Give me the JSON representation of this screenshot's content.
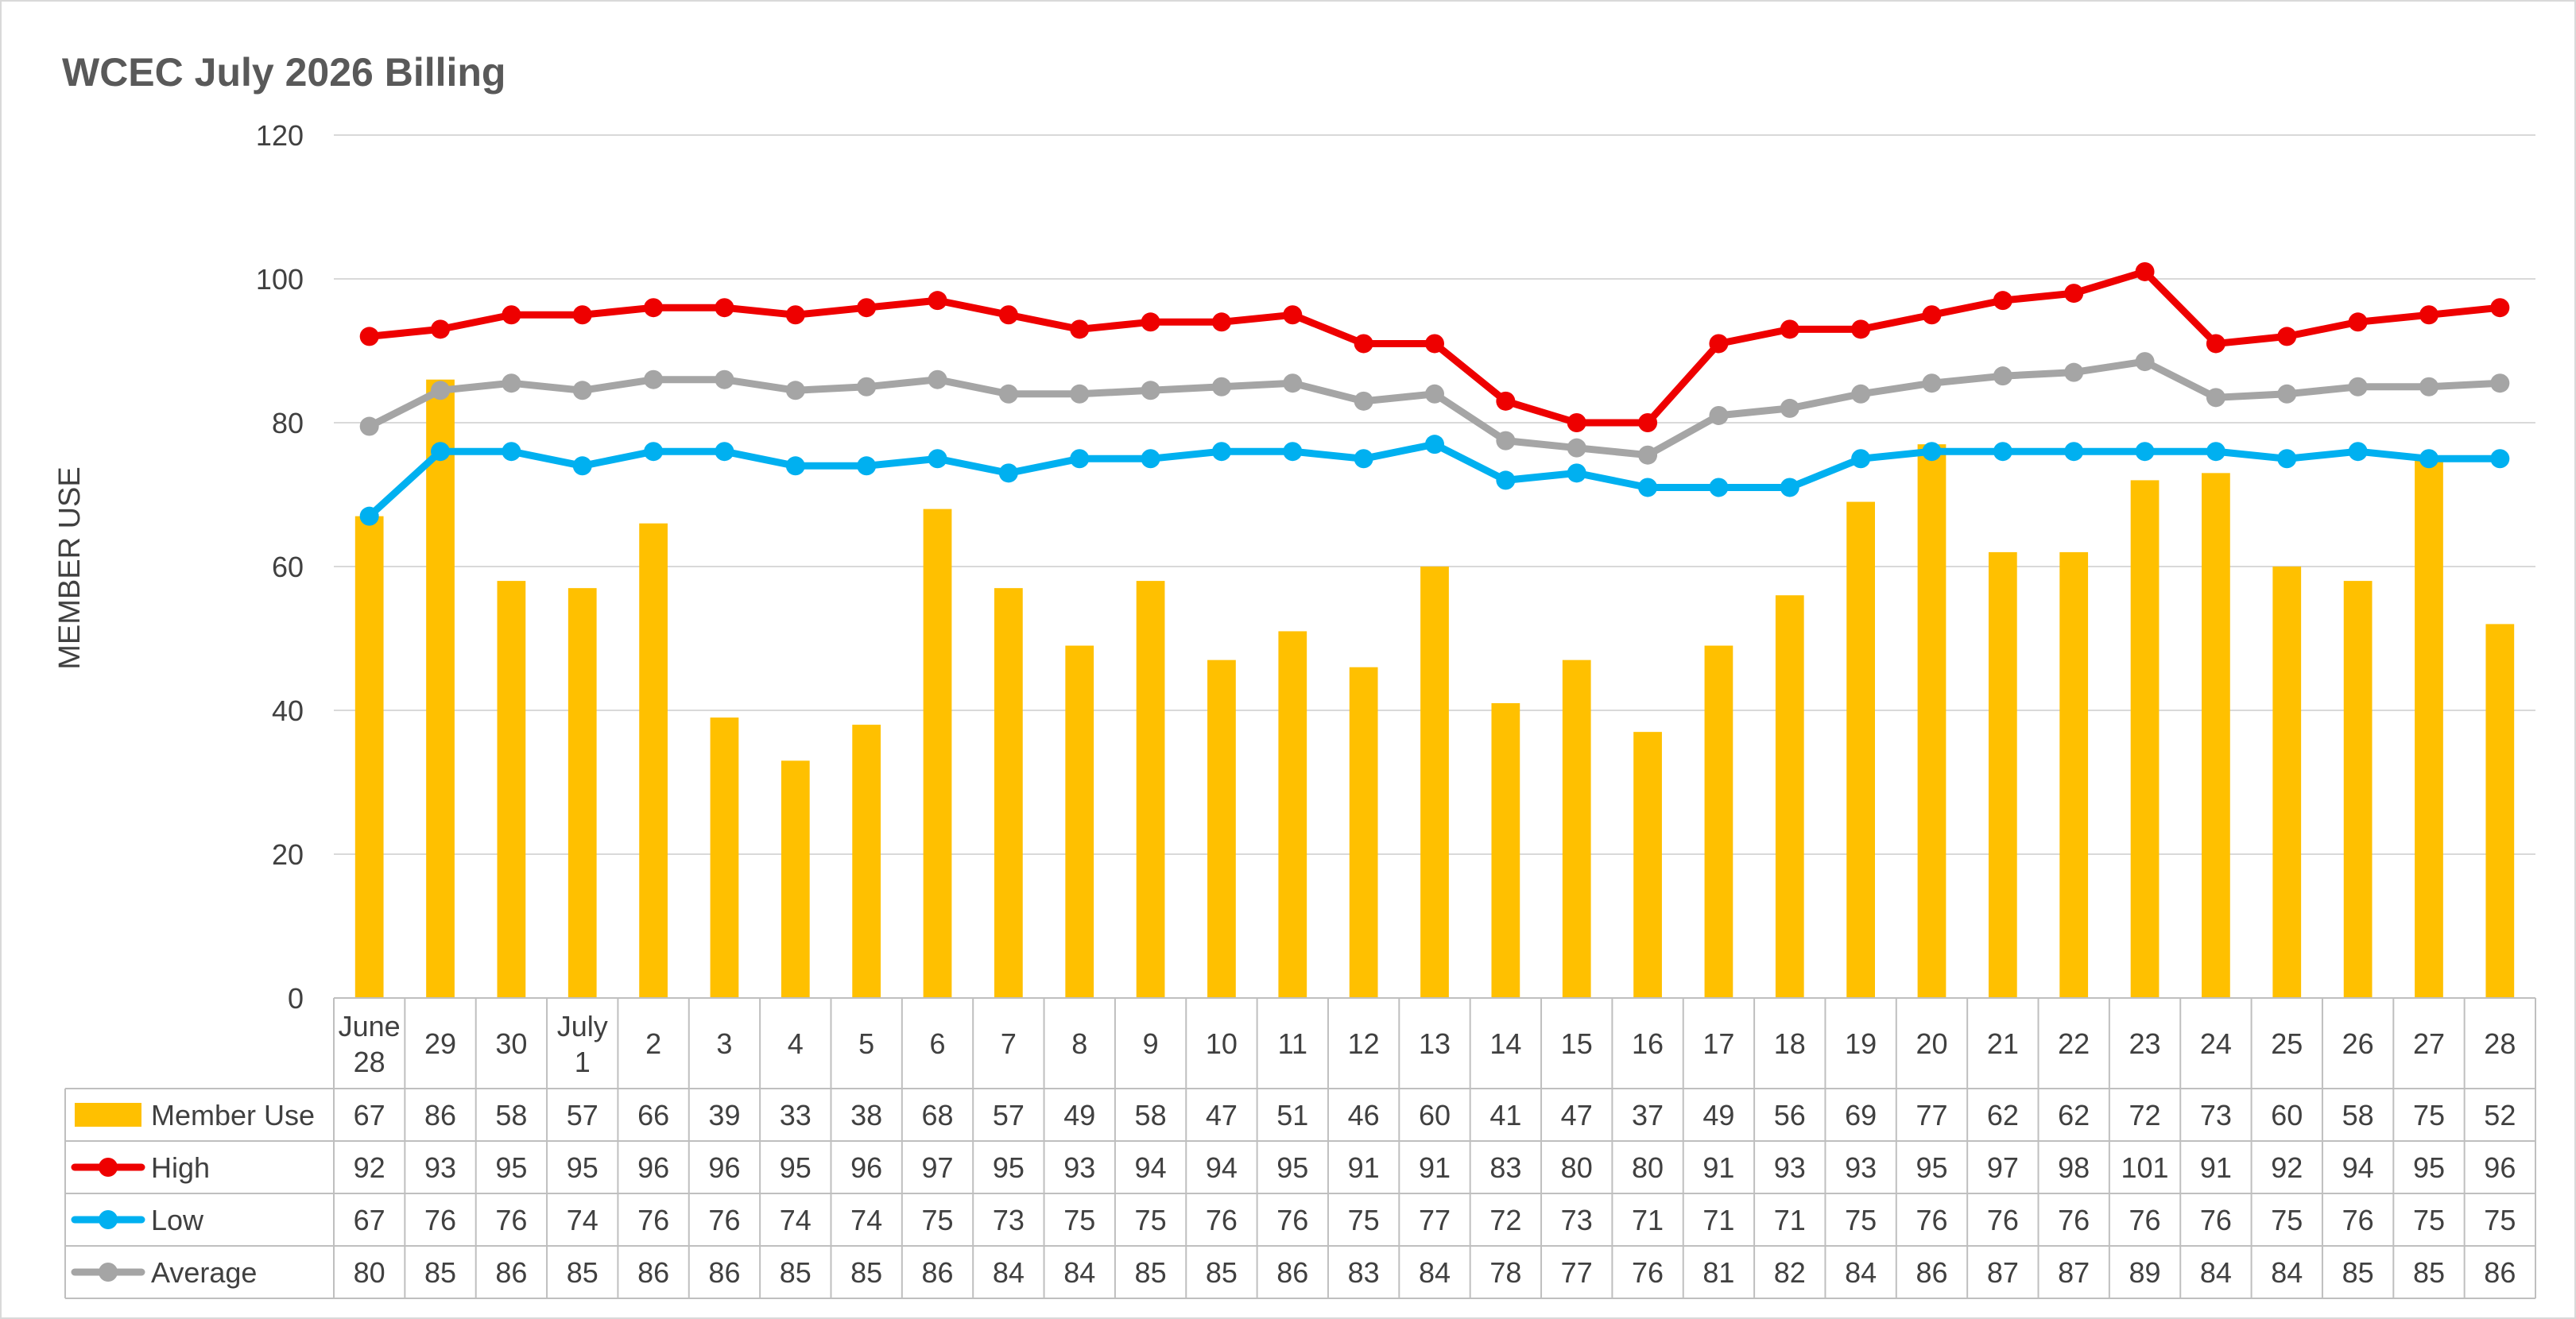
{
  "chart_data": {
    "type": "bar",
    "title": "WCEC July 2026 Billing",
    "xlabel": "",
    "ylabel": "MEMBER USE",
    "ylim": [
      0,
      120
    ],
    "yticks": [
      0,
      20,
      40,
      60,
      80,
      100,
      120
    ],
    "grid": true,
    "legend": "data-table",
    "categories": [
      [
        "June",
        "28"
      ],
      [
        "29"
      ],
      [
        "30"
      ],
      [
        "July",
        "1"
      ],
      [
        "2"
      ],
      [
        "3"
      ],
      [
        "4"
      ],
      [
        "5"
      ],
      [
        "6"
      ],
      [
        "7"
      ],
      [
        "8"
      ],
      [
        "9"
      ],
      [
        "10"
      ],
      [
        "11"
      ],
      [
        "12"
      ],
      [
        "13"
      ],
      [
        "14"
      ],
      [
        "15"
      ],
      [
        "16"
      ],
      [
        "17"
      ],
      [
        "18"
      ],
      [
        "19"
      ],
      [
        "20"
      ],
      [
        "21"
      ],
      [
        "22"
      ],
      [
        "23"
      ],
      [
        "24"
      ],
      [
        "25"
      ],
      [
        "26"
      ],
      [
        "27"
      ],
      [
        "28"
      ]
    ],
    "series": [
      {
        "name": "Member Use",
        "type": "bar",
        "color": "#FFC000",
        "values": [
          67,
          86,
          58,
          57,
          66,
          39,
          33,
          38,
          68,
          57,
          49,
          58,
          47,
          51,
          46,
          60,
          41,
          47,
          37,
          49,
          56,
          69,
          77,
          62,
          62,
          72,
          73,
          60,
          58,
          75,
          52
        ]
      },
      {
        "name": "High",
        "type": "line",
        "color": "#EE0000",
        "values": [
          92,
          93,
          95,
          95,
          96,
          96,
          95,
          96,
          97,
          95,
          93,
          94,
          94,
          95,
          91,
          91,
          83,
          80,
          80,
          91,
          93,
          93,
          95,
          97,
          98,
          101,
          91,
          92,
          94,
          95,
          96
        ]
      },
      {
        "name": "Low",
        "type": "line",
        "color": "#00B0F0",
        "values": [
          67,
          76,
          76,
          74,
          76,
          76,
          74,
          74,
          75,
          73,
          75,
          75,
          76,
          76,
          75,
          77,
          72,
          73,
          71,
          71,
          71,
          75,
          76,
          76,
          76,
          76,
          76,
          75,
          76,
          75,
          75
        ]
      },
      {
        "name": "Average",
        "type": "line",
        "color": "#A5A5A5",
        "values": [
          80,
          85,
          86,
          85,
          86,
          86,
          85,
          85,
          86,
          84,
          84,
          85,
          85,
          86,
          83,
          84,
          78,
          77,
          76,
          81,
          82,
          84,
          86,
          87,
          87,
          89,
          84,
          84,
          85,
          85,
          86
        ],
        "plot_values": [
          79.5,
          84.5,
          85.5,
          84.5,
          86,
          86,
          84.5,
          85,
          86,
          84,
          84,
          84.5,
          85,
          85.5,
          83,
          84,
          77.5,
          76.5,
          75.5,
          81,
          82,
          84,
          85.5,
          86.5,
          87,
          88.5,
          83.5,
          84,
          85,
          85,
          85.5
        ]
      }
    ]
  }
}
